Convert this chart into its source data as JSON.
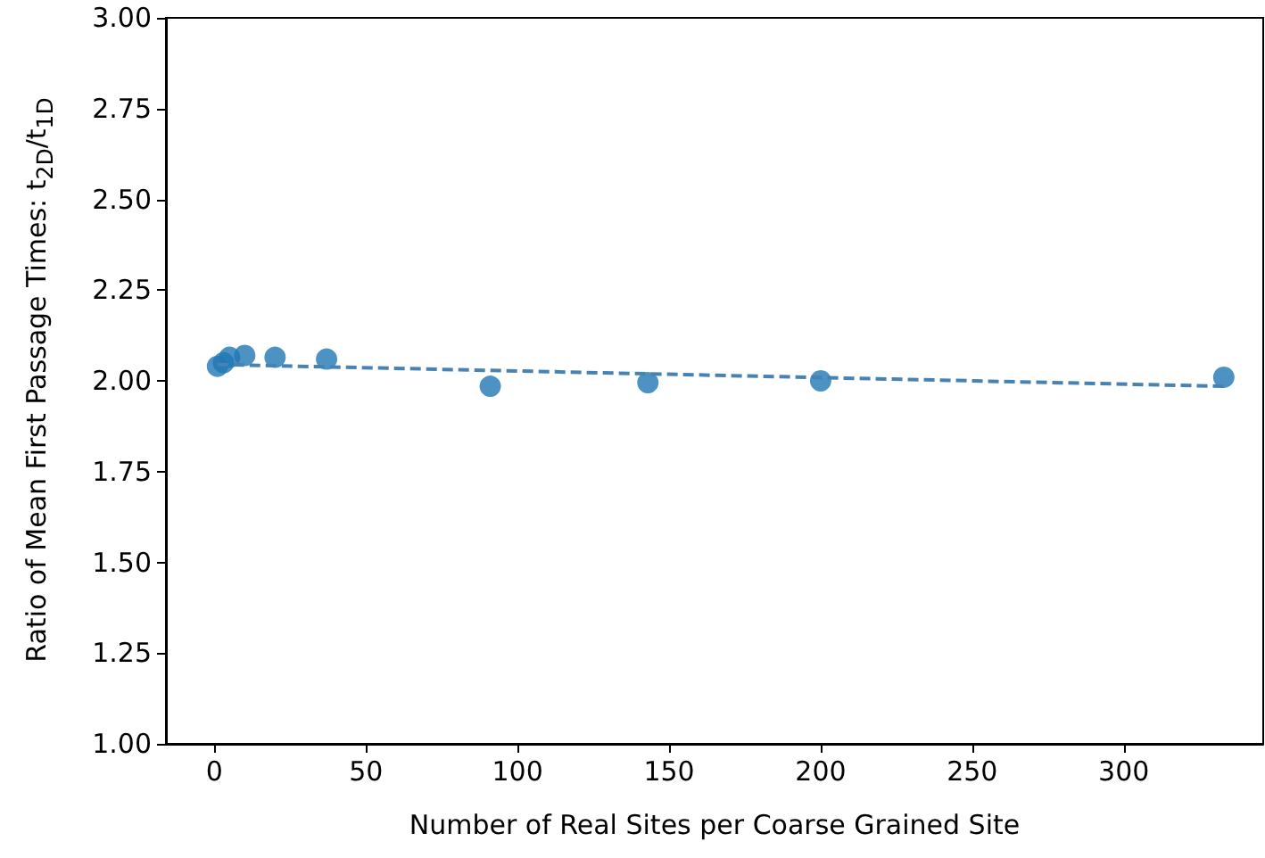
{
  "chart_data": {
    "type": "scatter",
    "xlabel": "Number of Real Sites per Coarse Grained Site",
    "ylabel": "Ratio of Mean First Passage Times: t$_{2D}$/t$_{1D}$",
    "xlim": [
      -16,
      346
    ],
    "xticks": [
      0,
      50,
      100,
      150,
      200,
      250,
      300
    ],
    "ylim": [
      1,
      3
    ],
    "yticks": [
      {
        "value": 1,
        "label": "1.00"
      },
      {
        "value": 1.25,
        "label": "1.25"
      },
      {
        "value": 1.5,
        "label": "1.50"
      },
      {
        "value": 1.75,
        "label": "1.75"
      },
      {
        "value": 2,
        "label": "2.00"
      },
      {
        "value": 2.25,
        "label": "2.25"
      },
      {
        "value": 2.5,
        "label": "2.50"
      },
      {
        "value": 2.75,
        "label": "2.75"
      },
      {
        "value": 3,
        "label": "3.00"
      }
    ],
    "grid": false,
    "marker": "circle",
    "series": [
      {
        "color": "#1f77b4",
        "x": [
          1,
          3,
          5,
          10,
          20,
          37,
          91,
          143,
          200,
          333
        ],
        "values": [
          2.04,
          2.05,
          2.065,
          2.07,
          2.065,
          2.06,
          1.985,
          1.995,
          2.0,
          2.01
        ]
      },
      {
        "type": "line",
        "color": "#4682b4",
        "line_style": "dashed",
        "marker": "none",
        "x": [
          1,
          333
        ],
        "values": [
          2.045,
          1.985
        ]
      }
    ]
  }
}
